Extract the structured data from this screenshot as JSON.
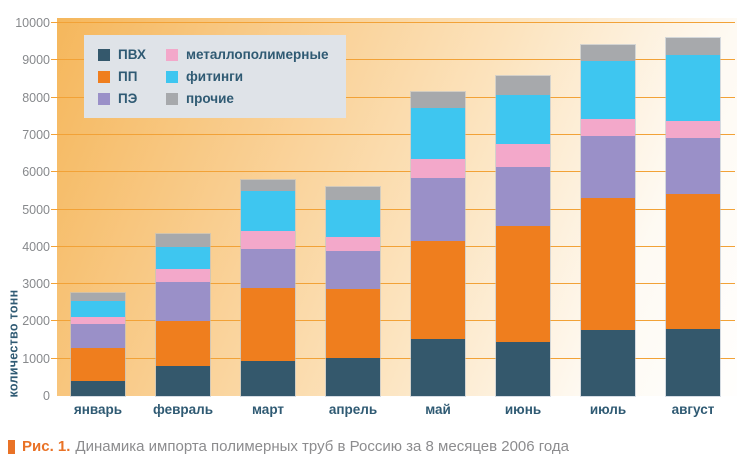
{
  "chart_data": {
    "type": "bar",
    "stacked": true,
    "categories": [
      "январь",
      "февраль",
      "март",
      "апрель",
      "май",
      "июнь",
      "июль",
      "август"
    ],
    "series": [
      {
        "name": "ПВХ",
        "color": "#34586c",
        "values": [
          400,
          800,
          940,
          1030,
          1530,
          1440,
          1780,
          1800
        ]
      },
      {
        "name": "ПП",
        "color": "#ef7e1e",
        "values": [
          880,
          1220,
          1950,
          1840,
          2630,
          3120,
          3530,
          3620
        ]
      },
      {
        "name": "ПЭ",
        "color": "#9a90c8",
        "values": [
          650,
          1030,
          1050,
          1020,
          1680,
          1590,
          1670,
          1490
        ]
      },
      {
        "name": "металлополимерные",
        "color": "#f3a8ca",
        "values": [
          180,
          370,
          480,
          380,
          520,
          600,
          450,
          470
        ]
      },
      {
        "name": "фитинги",
        "color": "#3ec6f0",
        "values": [
          450,
          580,
          1080,
          980,
          1360,
          1320,
          1540,
          1760
        ]
      },
      {
        "name": "прочие",
        "color": "#a7a9ac",
        "values": [
          210,
          350,
          300,
          350,
          430,
          510,
          440,
          450
        ]
      }
    ],
    "totals": [
      2770,
      4350,
      5800,
      5600,
      8150,
      8580,
      9410,
      9590
    ],
    "ylabel": "количество тонн",
    "xlabel": "",
    "title": "",
    "ylim": [
      0,
      10000
    ],
    "yticks": [
      0,
      1000,
      2000,
      3000,
      4000,
      5000,
      6000,
      7000,
      8000,
      9000,
      10000
    ],
    "grid": true,
    "gridline_color": "#f2a237",
    "legend_position": "top-left",
    "legend_column_order": [
      0,
      3,
      1,
      4,
      2,
      5
    ],
    "plot_background_gradient": [
      "#f5b75c",
      "#fffefd"
    ]
  },
  "caption": {
    "marker_color": "#e97226",
    "label": "Рис. 1.",
    "label_color": "#e97226",
    "text": "Динамика импорта полимерных труб в Россию за 8 месяцев 2006 года"
  }
}
